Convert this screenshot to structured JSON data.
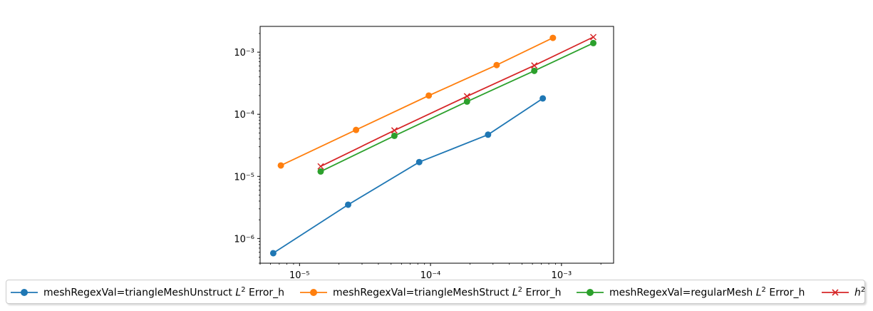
{
  "chart_data": {
    "type": "line",
    "x_scale": "log",
    "y_scale": "log",
    "xlim": [
      5e-06,
      0.0025
    ],
    "ylim": [
      4e-07,
      0.0026
    ],
    "grid": false,
    "legend_placement": "bottom",
    "x_ticks": [
      {
        "value": 1e-05,
        "label": "10⁻⁵"
      },
      {
        "value": 0.0001,
        "label": "10⁻⁴"
      },
      {
        "value": 0.001,
        "label": "10⁻³"
      }
    ],
    "y_ticks": [
      {
        "value": 1e-06,
        "label": "10⁻⁶"
      },
      {
        "value": 1e-05,
        "label": "10⁻⁵"
      },
      {
        "value": 0.0001,
        "label": "10⁻⁴"
      },
      {
        "value": 0.001,
        "label": "10⁻³"
      }
    ],
    "series": [
      {
        "name": "meshRegexVal=triangleMeshUnstruct L² Error_h",
        "label_base": "meshRegexVal=triangleMeshUnstruct ",
        "label_tail": " Error_h",
        "color": "#1f77b4",
        "marker": "circle",
        "x": [
          6.3e-06,
          2.35e-05,
          8.2e-05,
          0.000275,
          0.00072
        ],
        "y": [
          5.8e-07,
          3.5e-06,
          1.7e-05,
          4.7e-05,
          0.00018
        ]
      },
      {
        "name": "meshRegexVal=triangleMeshStruct L² Error_h",
        "label_base": "meshRegexVal=triangleMeshStruct ",
        "label_tail": " Error_h",
        "color": "#ff7f0e",
        "marker": "circle",
        "x": [
          7.2e-06,
          2.7e-05,
          9.7e-05,
          0.00032,
          0.00086
        ],
        "y": [
          1.5e-05,
          5.6e-05,
          0.0002,
          0.00062,
          0.0017
        ]
      },
      {
        "name": "meshRegexVal=regularMesh L² Error_h",
        "label_base": "meshRegexVal=regularMesh ",
        "label_tail": " Error_h",
        "color": "#2ca02c",
        "marker": "circle",
        "x": [
          1.45e-05,
          5.3e-05,
          0.00019,
          0.00062,
          0.00175
        ],
        "y": [
          1.2e-05,
          4.5e-05,
          0.00016,
          0.0005,
          0.0014
        ]
      },
      {
        "name": "h²",
        "label_base": "h",
        "label_tail": "",
        "color": "#d62728",
        "marker": "x",
        "x": [
          1.45e-05,
          5.3e-05,
          0.00019,
          0.00062,
          0.00175
        ],
        "y": [
          1.45e-05,
          5.5e-05,
          0.000195,
          0.00061,
          0.00175
        ]
      }
    ]
  },
  "legend": {
    "items": [
      {
        "base": "meshRegexVal=triangleMeshUnstruct ",
        "italic": "L",
        "sup": "2",
        "tail": " Error_h"
      },
      {
        "base": "meshRegexVal=triangleMeshStruct ",
        "italic": "L",
        "sup": "2",
        "tail": " Error_h"
      },
      {
        "base": "meshRegexVal=regularMesh ",
        "italic": "L",
        "sup": "2",
        "tail": " Error_h"
      },
      {
        "base": "",
        "italic": "h",
        "sup": "2",
        "tail": ""
      }
    ]
  }
}
